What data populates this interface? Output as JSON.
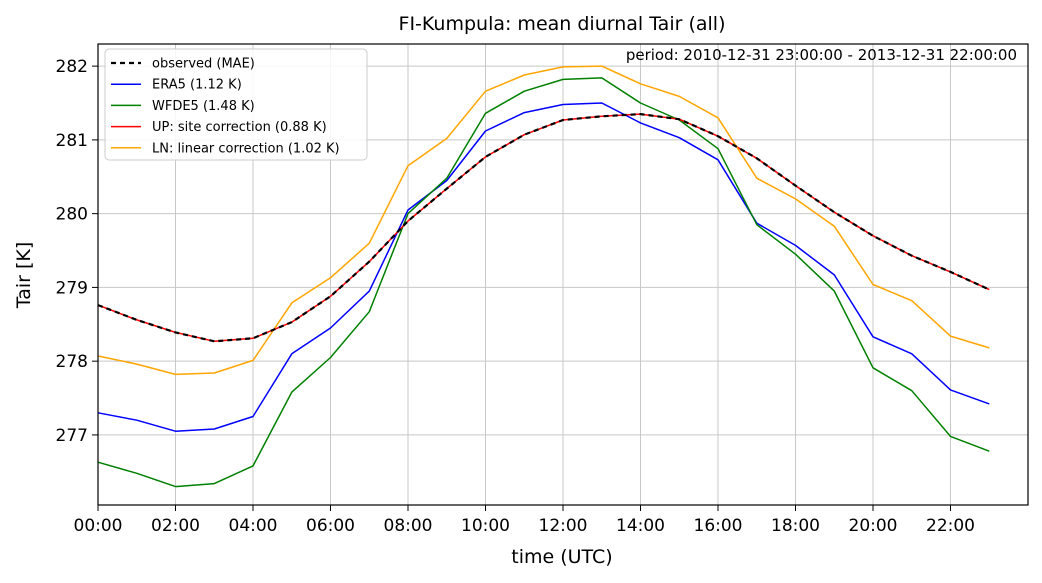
{
  "chart_data": {
    "type": "line",
    "title": "FI-Kumpula: mean diurnal Tair (all)",
    "xlabel": "time (UTC)",
    "ylabel": "Tair [K]",
    "annotation": "period: 2010-12-31 23:00:00 - 2013-12-31 22:00:00",
    "xlim": [
      0,
      24
    ],
    "ylim": [
      276.05,
      282.3
    ],
    "grid": true,
    "legend_position": "top-left",
    "x_ticks": [
      0,
      2,
      4,
      6,
      8,
      10,
      12,
      14,
      16,
      18,
      20,
      22
    ],
    "x_tick_labels": [
      "00:00",
      "02:00",
      "04:00",
      "06:00",
      "08:00",
      "10:00",
      "12:00",
      "14:00",
      "16:00",
      "18:00",
      "20:00",
      "22:00"
    ],
    "y_ticks": [
      277,
      278,
      279,
      280,
      281,
      282
    ],
    "y_tick_labels": [
      "277",
      "278",
      "279",
      "280",
      "281",
      "282"
    ],
    "x": [
      0,
      1,
      2,
      3,
      4,
      5,
      6,
      7,
      8,
      9,
      10,
      11,
      12,
      13,
      14,
      15,
      16,
      17,
      18,
      19,
      20,
      21,
      22,
      23
    ],
    "series": [
      {
        "name": "ERA5 (1.12 K)",
        "color": "#0000ff",
        "dash": "",
        "values": [
          277.3,
          277.2,
          277.05,
          277.08,
          277.25,
          278.1,
          278.45,
          278.95,
          280.05,
          280.45,
          281.12,
          281.37,
          281.48,
          281.5,
          281.23,
          281.03,
          280.73,
          279.87,
          279.57,
          279.17,
          278.33,
          278.1,
          277.61,
          277.42
        ]
      },
      {
        "name": "WFDE5 (1.48 K)",
        "color": "#008000",
        "dash": "",
        "values": [
          276.63,
          276.48,
          276.3,
          276.34,
          276.58,
          277.58,
          278.05,
          278.67,
          280.0,
          280.48,
          281.36,
          281.66,
          281.82,
          281.84,
          281.5,
          281.27,
          280.88,
          279.85,
          279.45,
          278.95,
          277.91,
          277.6,
          276.98,
          276.78
        ]
      },
      {
        "name": "UP: site correction (0.88 K)",
        "color": "#ff0000",
        "dash": "",
        "values": [
          278.76,
          278.56,
          278.39,
          278.27,
          278.31,
          278.53,
          278.88,
          279.35,
          279.9,
          280.34,
          280.77,
          281.07,
          281.27,
          281.32,
          281.35,
          281.28,
          281.05,
          280.75,
          280.38,
          280.02,
          279.7,
          279.43,
          279.21,
          278.97
        ]
      },
      {
        "name": "LN: linear correction (1.02 K)",
        "color": "#ffa500",
        "dash": "",
        "values": [
          278.07,
          277.96,
          277.82,
          277.84,
          278.01,
          278.79,
          279.13,
          279.6,
          280.65,
          281.02,
          281.66,
          281.88,
          281.99,
          282.0,
          281.76,
          281.59,
          281.3,
          280.48,
          280.2,
          279.83,
          279.04,
          278.82,
          278.34,
          278.18
        ]
      },
      {
        "name": "observed (MAE)",
        "color": "#000000",
        "dash": "5,4",
        "values": [
          278.76,
          278.56,
          278.39,
          278.27,
          278.31,
          278.53,
          278.88,
          279.35,
          279.9,
          280.34,
          280.77,
          281.07,
          281.27,
          281.32,
          281.35,
          281.28,
          281.05,
          280.75,
          280.38,
          280.02,
          279.7,
          279.43,
          279.21,
          278.97
        ]
      }
    ],
    "legend_order": [
      4,
      0,
      1,
      2,
      3
    ]
  }
}
